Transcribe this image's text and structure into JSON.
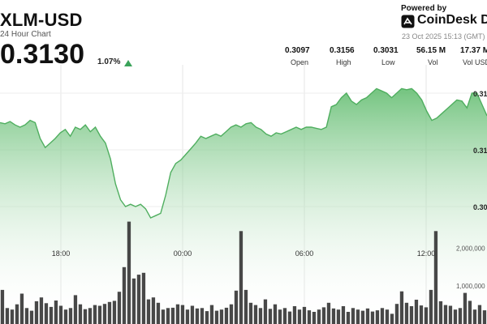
{
  "header": {
    "ticker": "XLM-USD",
    "subtitle": "24 Hour Chart",
    "price": "0.3130",
    "change": "1.07%",
    "change_direction": "up",
    "change_color": "#3aa35a"
  },
  "brand": {
    "powered_by": "Powered by",
    "name": "CoinDesk Data",
    "logo_icon": "coindesk-logo-icon",
    "timestamp": "23 Oct 2025 15:13 (GMT)"
  },
  "stats": [
    {
      "value": "0.3097",
      "label": "Open"
    },
    {
      "value": "0.3156",
      "label": "High"
    },
    {
      "value": "0.3031",
      "label": "Low"
    },
    {
      "value": "56.15 M",
      "label": "Vol"
    },
    {
      "value": "17.37 M",
      "label": "Vol USD"
    }
  ],
  "chart_data": {
    "type": "area",
    "x_tick_labels": [
      "18:00",
      "00:00",
      "06:00",
      "12:00"
    ],
    "x_tick_positions_hours": [
      3,
      9,
      15,
      21
    ],
    "x_range_hours": [
      0,
      24
    ],
    "price_ylim": [
      0.3025,
      0.3165
    ],
    "price_tick_labels": [
      "0.31",
      "0.31",
      "0.30"
    ],
    "price_tick_values": [
      0.315,
      0.31,
      0.305
    ],
    "volume_ylim": [
      0,
      4400000
    ],
    "volume_tick_labels": [
      "2,000,000",
      "1,000,000"
    ],
    "volume_tick_values": [
      2000000,
      1000000
    ],
    "series": [
      {
        "values": [
          0.3124,
          0.3123,
          0.3125,
          0.3122,
          0.312,
          0.3122,
          0.3126,
          0.3124,
          0.311,
          0.3102,
          0.3106,
          0.311,
          0.3115,
          0.3118,
          0.3112,
          0.312,
          0.3118,
          0.3122,
          0.3116,
          0.312,
          0.3112,
          0.3106,
          0.3092,
          0.307,
          0.3056,
          0.305,
          0.3052,
          0.305,
          0.3052,
          0.3048,
          0.304,
          0.3042,
          0.3044,
          0.306,
          0.308,
          0.3088,
          0.3091,
          0.3096,
          0.3101,
          0.3106,
          0.3112,
          0.311,
          0.3112,
          0.3114,
          0.3112,
          0.3116,
          0.312,
          0.3122,
          0.312,
          0.3123,
          0.3124,
          0.312,
          0.3118,
          0.3114,
          0.3112,
          0.3115,
          0.3114,
          0.3116,
          0.3118,
          0.312,
          0.3118,
          0.312,
          0.312,
          0.3119,
          0.3118,
          0.312,
          0.3138,
          0.314,
          0.3146,
          0.315,
          0.3143,
          0.314,
          0.3144,
          0.3146,
          0.315,
          0.3154,
          0.3152,
          0.315,
          0.3146,
          0.315,
          0.3154,
          0.3153,
          0.3154,
          0.315,
          0.3144,
          0.3134,
          0.3126,
          0.3128,
          0.3132,
          0.3136,
          0.314,
          0.3144,
          0.3143,
          0.3137,
          0.315,
          0.315,
          0.314,
          0.313
        ]
      }
    ],
    "volume": [
      900000,
      420000,
      380000,
      520000,
      800000,
      420000,
      350000,
      600000,
      700000,
      550000,
      450000,
      620000,
      480000,
      380000,
      420000,
      760000,
      520000,
      390000,
      420000,
      500000,
      480000,
      530000,
      580000,
      610000,
      850000,
      1500000,
      2700000,
      1200000,
      1300000,
      1350000,
      650000,
      700000,
      560000,
      380000,
      420000,
      430000,
      520000,
      500000,
      380000,
      480000,
      410000,
      420000,
      340000,
      500000,
      350000,
      380000,
      430000,
      520000,
      880000,
      2450000,
      900000,
      560000,
      500000,
      420000,
      650000,
      400000,
      520000,
      380000,
      420000,
      330000,
      470000,
      380000,
      450000,
      360000,
      320000,
      380000,
      440000,
      560000,
      410000,
      380000,
      470000,
      320000,
      420000,
      380000,
      350000,
      410000,
      330000,
      360000,
      420000,
      380000,
      270000,
      530000,
      860000,
      560000,
      470000,
      640000,
      490000,
      440000,
      900000,
      2450000,
      600000,
      500000,
      480000,
      380000,
      420000,
      820000,
      610000,
      380000,
      500000,
      360000
    ]
  }
}
